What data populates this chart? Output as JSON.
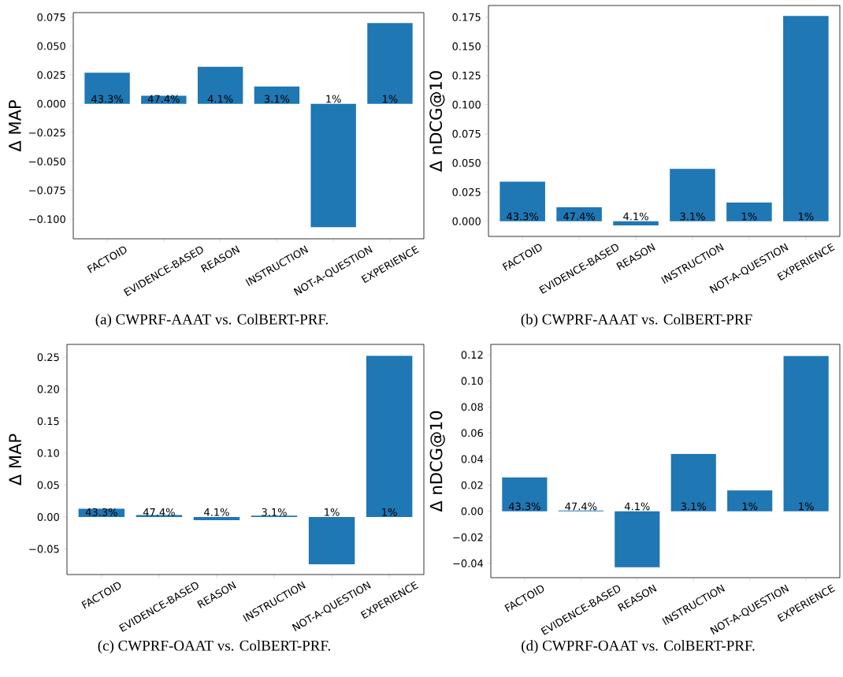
{
  "chart_data": [
    {
      "type": "bar",
      "title": "(a) CWPRF-AAAT vs. ColBERT-PRF.",
      "ylabel": "Δ MAP",
      "categories": [
        "FACTOID",
        "EVIDENCE-BASED",
        "REASON",
        "INSTRUCTION",
        "NOT-A-QUESTION",
        "EXPERIENCE"
      ],
      "values": [
        0.027,
        0.007,
        0.032,
        0.015,
        -0.107,
        0.07
      ],
      "color": "#1f77b4",
      "ylim": [
        -0.117,
        0.079
      ],
      "annotations": [
        {
          "text": "43.3%",
          "x": "FACTOID",
          "y": 0
        },
        {
          "text": "47.4%",
          "x": "EVIDENCE-BASED",
          "y": 0
        },
        {
          "text": "4.1%",
          "x": "REASON",
          "y": 0
        },
        {
          "text": "3.1%",
          "x": "INSTRUCTION",
          "y": 0
        },
        {
          "text": "1%",
          "x": "NOT-A-QUESTION",
          "y": 0
        },
        {
          "text": "1%",
          "x": "EXPERIENCE",
          "y": 0
        }
      ],
      "yticks": [
        {
          "value": -0.1,
          "label": "−0.100"
        },
        {
          "value": -0.075,
          "label": "−0.075"
        },
        {
          "value": -0.05,
          "label": "−0.050"
        },
        {
          "value": -0.025,
          "label": "−0.025"
        },
        {
          "value": 0,
          "label": "0.000"
        },
        {
          "value": 0.025,
          "label": "0.025"
        },
        {
          "value": 0.05,
          "label": "0.050"
        },
        {
          "value": 0.075,
          "label": "0.075"
        }
      ]
    },
    {
      "type": "bar",
      "title": "(b) CWPRF-AAAT vs. ColBERT-PRF",
      "ylabel": "Δ nDCG@10",
      "categories": [
        "FACTOID",
        "EVIDENCE-BASED",
        "REASON",
        "INSTRUCTION",
        "NOT-A-QUESTION",
        "EXPERIENCE"
      ],
      "values": [
        0.034,
        0.012,
        -0.0035,
        0.045,
        0.016,
        0.176
      ],
      "color": "#1f77b4",
      "ylim": [
        -0.013,
        0.185
      ],
      "annotations": [
        {
          "text": "43.3%",
          "x": "FACTOID",
          "y": 0
        },
        {
          "text": "47.4%",
          "x": "EVIDENCE-BASED",
          "y": 0
        },
        {
          "text": "4.1%",
          "x": "REASON",
          "y": 0
        },
        {
          "text": "3.1%",
          "x": "INSTRUCTION",
          "y": 0
        },
        {
          "text": "1%",
          "x": "NOT-A-QUESTION",
          "y": 0
        },
        {
          "text": "1%",
          "x": "EXPERIENCE",
          "y": 0
        }
      ],
      "yticks": [
        {
          "value": 0,
          "label": "0.000"
        },
        {
          "value": 0.025,
          "label": "0.025"
        },
        {
          "value": 0.05,
          "label": "0.050"
        },
        {
          "value": 0.075,
          "label": "0.075"
        },
        {
          "value": 0.1,
          "label": "0.100"
        },
        {
          "value": 0.125,
          "label": "0.125"
        },
        {
          "value": 0.15,
          "label": "0.150"
        },
        {
          "value": 0.175,
          "label": "0.175"
        }
      ]
    },
    {
      "type": "bar",
      "title": "(c) CWPRF-OAAT vs. ColBERT-PRF.",
      "ylabel": "Δ MAP",
      "categories": [
        "FACTOID",
        "EVIDENCE-BASED",
        "REASON",
        "INSTRUCTION",
        "NOT-A-QUESTION",
        "EXPERIENCE"
      ],
      "values": [
        0.013,
        0.003,
        -0.005,
        0.002,
        -0.074,
        0.252
      ],
      "color": "#1f77b4",
      "ylim": [
        -0.09,
        0.27
      ],
      "annotations": [
        {
          "text": "43.3%",
          "x": "FACTOID",
          "y": 0
        },
        {
          "text": "47.4%",
          "x": "EVIDENCE-BASED",
          "y": 0
        },
        {
          "text": "4.1%",
          "x": "REASON",
          "y": 0
        },
        {
          "text": "3.1%",
          "x": "INSTRUCTION",
          "y": 0
        },
        {
          "text": "1%",
          "x": "NOT-A-QUESTION",
          "y": 0
        },
        {
          "text": "1%",
          "x": "EXPERIENCE",
          "y": 0
        }
      ],
      "yticks": [
        {
          "value": -0.05,
          "label": "−0.05"
        },
        {
          "value": 0,
          "label": "0.00"
        },
        {
          "value": 0.05,
          "label": "0.05"
        },
        {
          "value": 0.1,
          "label": "0.10"
        },
        {
          "value": 0.15,
          "label": "0.15"
        },
        {
          "value": 0.2,
          "label": "0.20"
        },
        {
          "value": 0.25,
          "label": "0.25"
        }
      ]
    },
    {
      "type": "bar",
      "title": "(d) CWPRF-OAAT vs. ColBERT-PRF.",
      "ylabel": "Δ nDCG@10",
      "categories": [
        "FACTOID",
        "EVIDENCE-BASED",
        "REASON",
        "INSTRUCTION",
        "NOT-A-QUESTION",
        "EXPERIENCE"
      ],
      "values": [
        0.026,
        0.0005,
        -0.043,
        0.044,
        0.016,
        0.119
      ],
      "color": "#1f77b4",
      "ylim": [
        -0.051,
        0.128
      ],
      "annotations": [
        {
          "text": "43.3%",
          "x": "FACTOID",
          "y": 0
        },
        {
          "text": "47.4%",
          "x": "EVIDENCE-BASED",
          "y": 0
        },
        {
          "text": "4.1%",
          "x": "REASON",
          "y": 0
        },
        {
          "text": "3.1%",
          "x": "INSTRUCTION",
          "y": 0
        },
        {
          "text": "1%",
          "x": "NOT-A-QUESTION",
          "y": 0
        },
        {
          "text": "1%",
          "x": "EXPERIENCE",
          "y": 0
        }
      ],
      "yticks": [
        {
          "value": -0.04,
          "label": "−0.04"
        },
        {
          "value": -0.02,
          "label": "−0.02"
        },
        {
          "value": 0,
          "label": "0.00"
        },
        {
          "value": 0.02,
          "label": "0.02"
        },
        {
          "value": 0.04,
          "label": "0.04"
        },
        {
          "value": 0.06,
          "label": "0.06"
        },
        {
          "value": 0.08,
          "label": "0.08"
        },
        {
          "value": 0.1,
          "label": "0.10"
        },
        {
          "value": 0.12,
          "label": "0.12"
        }
      ]
    }
  ]
}
